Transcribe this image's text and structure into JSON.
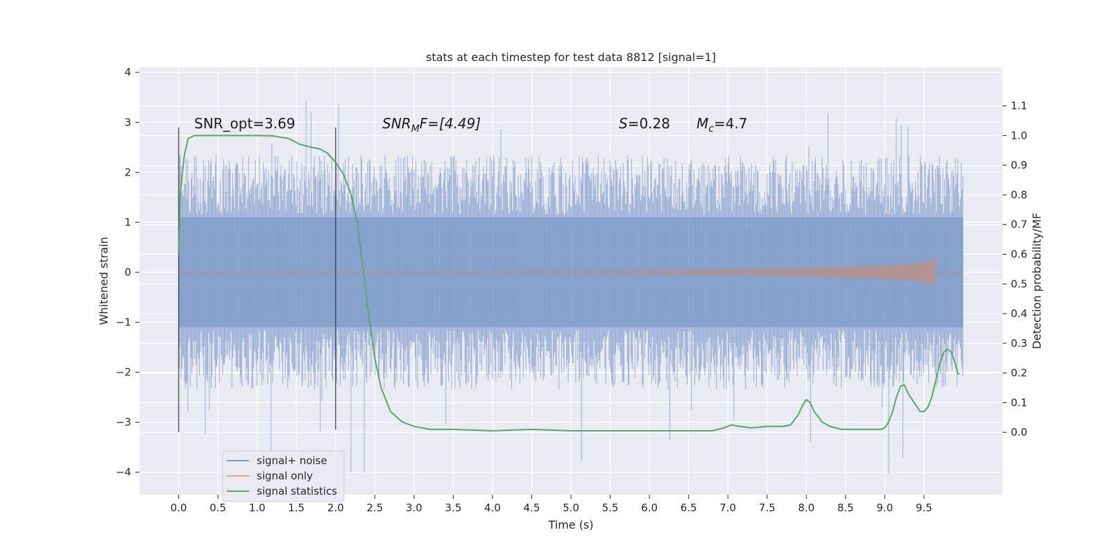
{
  "chart_data": {
    "type": "line",
    "title": "stats at each timestep for test data 8812 [signal=1]",
    "xlabel": "Time (s)",
    "ylabel": "Whitened strain",
    "y2label": "Detection probability/MF",
    "xlim": [
      -0.5,
      10.5
    ],
    "ylim": [
      -4.45,
      4.1
    ],
    "y2lim": [
      -0.21,
      1.23
    ],
    "xticks": [
      0.0,
      0.5,
      1.0,
      1.5,
      2.0,
      2.5,
      3.0,
      3.5,
      4.0,
      4.5,
      5.0,
      5.5,
      6.0,
      6.5,
      7.0,
      7.5,
      8.0,
      8.5,
      9.0,
      9.5
    ],
    "xtick_labels": [
      "0.0",
      "0.5",
      "1.0",
      "1.5",
      "2.0",
      "2.5",
      "3.0",
      "3.5",
      "4.0",
      "4.5",
      "5.0",
      "5.5",
      "6.0",
      "6.5",
      "7.0",
      "7.5",
      "8.0",
      "8.5",
      "9.0",
      "9.5"
    ],
    "yticks": [
      -4,
      -3,
      -2,
      -1,
      0,
      1,
      2,
      3,
      4
    ],
    "ytick_labels": [
      "−4",
      "−3",
      "−2",
      "−1",
      "0",
      "1",
      "2",
      "3",
      "4"
    ],
    "y2ticks": [
      0.0,
      0.1,
      0.2,
      0.3,
      0.4,
      0.5,
      0.6,
      0.7,
      0.8,
      0.9,
      1.0,
      1.1
    ],
    "y2tick_labels": [
      "0.0",
      "0.1",
      "0.2",
      "0.3",
      "0.4",
      "0.5",
      "0.6",
      "0.7",
      "0.8",
      "0.9",
      "1.0",
      "1.1"
    ],
    "annotations": {
      "snr_opt": "SNR_opt=3.69",
      "snr_mf_sym": "SNR",
      "snr_mf_sub": "M",
      "snr_mf_rest": "F=[4.49]",
      "s_sym": "S",
      "s_rest": "=0.28",
      "mc_sym": "M",
      "mc_sub": "c",
      "mc_rest": "=4.7"
    },
    "legend": {
      "position": "lower-left",
      "entries": [
        "signal+ noise",
        "signal only",
        "signal statistics"
      ]
    },
    "colors": {
      "noise": "#7f9bcb",
      "signal": "#dd8452",
      "stats": "#55a868",
      "vline": "#333333",
      "background": "#eaeaf2"
    },
    "series": [
      {
        "name": "signal+ noise",
        "kind": "noise_band",
        "x_range": [
          0.0,
          10.0
        ],
        "core_amplitude": 1.0,
        "typical_peak": 2.0,
        "max_value": 3.75,
        "min_value": -4.05
      },
      {
        "name": "signal only",
        "kind": "chirp",
        "x_range": [
          0.0,
          9.65
        ],
        "envelope": {
          "x": [
            0.0,
            4.0,
            6.0,
            7.0,
            8.0,
            8.5,
            9.0,
            9.3,
            9.5,
            9.6,
            9.65
          ],
          "y": [
            0.005,
            0.01,
            0.04,
            0.06,
            0.09,
            0.12,
            0.15,
            0.18,
            0.22,
            0.27,
            0.3
          ]
        }
      },
      {
        "name": "signal statistics",
        "axis": "right",
        "x": [
          0.0,
          0.02,
          0.07,
          0.12,
          0.2,
          0.4,
          0.8,
          1.0,
          1.2,
          1.4,
          1.55,
          1.7,
          1.8,
          1.9,
          2.0,
          2.1,
          2.2,
          2.28,
          2.35,
          2.42,
          2.5,
          2.58,
          2.7,
          2.85,
          3.0,
          3.2,
          3.5,
          4.0,
          4.5,
          5.0,
          5.5,
          6.0,
          6.5,
          6.8,
          6.95,
          7.05,
          7.15,
          7.3,
          7.5,
          7.7,
          7.8,
          7.9,
          7.95,
          8.0,
          8.05,
          8.1,
          8.2,
          8.3,
          8.45,
          8.7,
          8.95,
          9.0,
          9.05,
          9.1,
          9.15,
          9.2,
          9.25,
          9.3,
          9.4,
          9.45,
          9.5,
          9.55,
          9.6,
          9.65,
          9.7,
          9.75,
          9.8,
          9.85,
          9.9,
          9.93,
          9.95
        ],
        "values": [
          0.6,
          0.8,
          0.93,
          0.99,
          1.0,
          1.0,
          1.0,
          1.0,
          0.999,
          0.99,
          0.97,
          0.96,
          0.955,
          0.94,
          0.91,
          0.87,
          0.8,
          0.7,
          0.55,
          0.4,
          0.25,
          0.15,
          0.07,
          0.035,
          0.02,
          0.01,
          0.01,
          0.005,
          0.01,
          0.005,
          0.005,
          0.005,
          0.005,
          0.005,
          0.015,
          0.025,
          0.02,
          0.015,
          0.02,
          0.02,
          0.025,
          0.06,
          0.09,
          0.11,
          0.1,
          0.07,
          0.035,
          0.02,
          0.01,
          0.01,
          0.01,
          0.015,
          0.035,
          0.07,
          0.12,
          0.155,
          0.16,
          0.13,
          0.09,
          0.07,
          0.07,
          0.085,
          0.12,
          0.175,
          0.23,
          0.27,
          0.28,
          0.27,
          0.23,
          0.2,
          0.195
        ]
      }
    ],
    "vlines": [
      {
        "x": 0.0,
        "y_range": [
          -3.2,
          2.9
        ]
      },
      {
        "x": 2.0,
        "y_range": [
          -3.15,
          2.9
        ]
      }
    ]
  }
}
